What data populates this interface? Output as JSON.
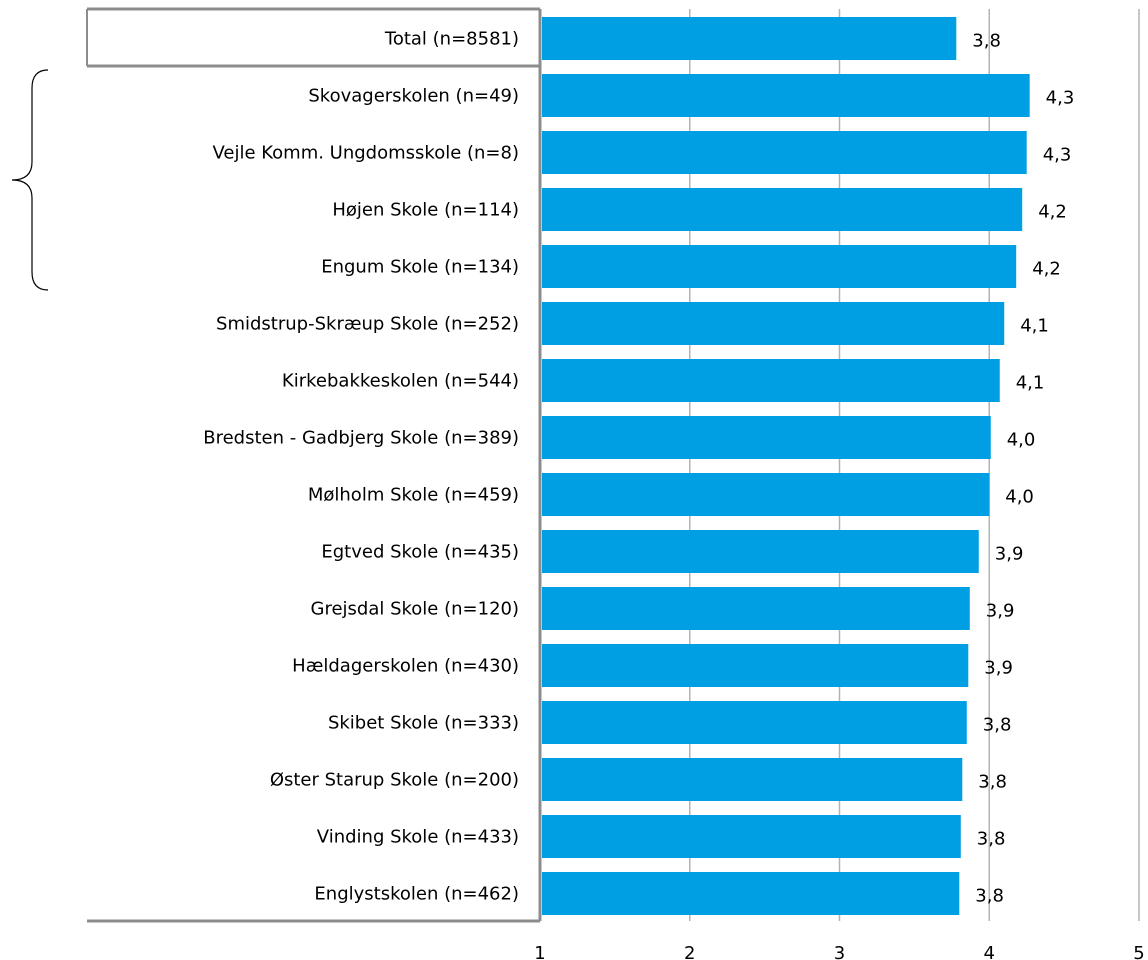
{
  "chart_data": {
    "type": "bar",
    "orientation": "horizontal",
    "title": "",
    "xlabel": "",
    "ylabel": "",
    "categories": [
      "Total (n=8581)",
      "Skovagerskolen (n=49)",
      "Vejle Komm. Ungdomsskole (n=8)",
      "Højen Skole (n=114)",
      "Engum Skole (n=134)",
      "Smidstrup-Skræup Skole (n=252)",
      "Kirkebakkeskolen (n=544)",
      "Bredsten - Gadbjerg Skole (n=389)",
      "Mølholm Skole (n=459)",
      "Egtved Skole (n=435)",
      "Grejsdal Skole (n=120)",
      "Hældagerskolen (n=430)",
      "Skibet Skole (n=333)",
      "Øster Starup Skole (n=200)",
      "Vinding Skole (n=433)",
      "Englystskolen (n=462)"
    ],
    "values": [
      3.78,
      4.27,
      4.25,
      4.22,
      4.18,
      4.1,
      4.07,
      4.01,
      4.0,
      3.93,
      3.87,
      3.86,
      3.85,
      3.82,
      3.81,
      3.8
    ],
    "value_labels": [
      "3,8",
      "4,3",
      "4,3",
      "4,2",
      "4,2",
      "4,1",
      "4,1",
      "4,0",
      "4,0",
      "3,9",
      "3,9",
      "3,9",
      "3,8",
      "3,8",
      "3,8",
      "3,8"
    ],
    "xlim": [
      1,
      5
    ],
    "xticks": [
      "1",
      "2",
      "3",
      "4",
      "5"
    ],
    "grid": true,
    "legend": "none",
    "bar_color": "#009fe3",
    "brace_group": [
      1,
      4
    ]
  }
}
